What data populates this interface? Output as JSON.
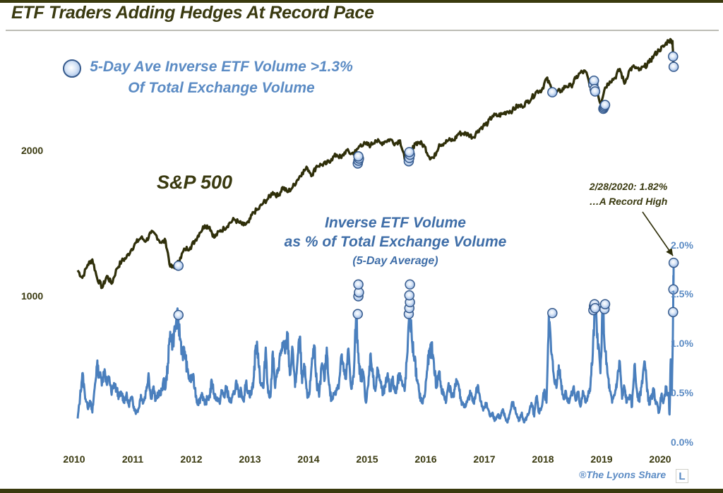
{
  "chart_data": {
    "type": "line",
    "title": "ETF Traders Adding Hedges At Record Pace",
    "x_range": [
      2010.0,
      2020.25
    ],
    "x_ticks": [
      "2010",
      "2011",
      "2012",
      "2013",
      "2014",
      "2015",
      "2016",
      "2017",
      "2018",
      "2019",
      "2020"
    ],
    "left_axis": {
      "scale": "log",
      "ticks": [
        "1000",
        "2000"
      ],
      "tick_values": [
        1000,
        2000
      ]
    },
    "right_axis": {
      "scale": "linear",
      "ticks": [
        "0.0%",
        "0.5%",
        "1.0%",
        "1.5%",
        "2.0%"
      ],
      "tick_values": [
        0.0,
        0.5,
        1.0,
        1.5,
        2.0
      ],
      "range": [
        0.0,
        2.0
      ]
    },
    "legend": {
      "marker": "circle-marker",
      "line1": "5-Day Ave Inverse ETF Volume >1.3%",
      "line2": "Of Total Exchange Volume",
      "placement": "top-left"
    },
    "series": [
      {
        "name": "S&P 500",
        "label": "S&P 500",
        "axis": "left",
        "color": "#2f2f0a",
        "x": [
          2010.0,
          2010.08,
          2010.17,
          2010.25,
          2010.33,
          2010.42,
          2010.5,
          2010.58,
          2010.67,
          2010.75,
          2010.83,
          2010.92,
          2011.0,
          2011.08,
          2011.17,
          2011.25,
          2011.33,
          2011.42,
          2011.5,
          2011.58,
          2011.67,
          2011.75,
          2011.83,
          2011.92,
          2012.0,
          2012.08,
          2012.17,
          2012.25,
          2012.33,
          2012.42,
          2012.5,
          2012.58,
          2012.67,
          2012.75,
          2012.83,
          2012.92,
          2013.0,
          2013.08,
          2013.17,
          2013.25,
          2013.33,
          2013.42,
          2013.5,
          2013.58,
          2013.67,
          2013.75,
          2013.83,
          2013.92,
          2014.0,
          2014.08,
          2014.17,
          2014.25,
          2014.33,
          2014.42,
          2014.5,
          2014.58,
          2014.67,
          2014.75,
          2014.83,
          2014.92,
          2015.0,
          2015.08,
          2015.17,
          2015.25,
          2015.33,
          2015.42,
          2015.5,
          2015.58,
          2015.67,
          2015.75,
          2015.83,
          2015.92,
          2016.0,
          2016.08,
          2016.17,
          2016.25,
          2016.33,
          2016.42,
          2016.5,
          2016.58,
          2016.67,
          2016.75,
          2016.83,
          2016.92,
          2017.0,
          2017.08,
          2017.17,
          2017.25,
          2017.33,
          2017.42,
          2017.5,
          2017.58,
          2017.67,
          2017.75,
          2017.83,
          2017.92,
          2018.0,
          2018.08,
          2018.17,
          2018.25,
          2018.33,
          2018.42,
          2018.5,
          2018.58,
          2018.67,
          2018.75,
          2018.83,
          2018.92,
          2019.0,
          2019.08,
          2019.17,
          2019.25,
          2019.33,
          2019.42,
          2019.5,
          2019.58,
          2019.67,
          2019.75,
          2019.83,
          2019.92,
          2020.0,
          2020.08,
          2020.15,
          2020.17
        ],
        "values": [
          1130,
          1090,
          1160,
          1190,
          1090,
          1040,
          1100,
          1060,
          1140,
          1180,
          1200,
          1250,
          1290,
          1320,
          1300,
          1350,
          1340,
          1290,
          1300,
          1150,
          1140,
          1200,
          1250,
          1260,
          1300,
          1350,
          1400,
          1390,
          1320,
          1360,
          1380,
          1410,
          1440,
          1420,
          1400,
          1420,
          1490,
          1510,
          1560,
          1590,
          1640,
          1610,
          1680,
          1640,
          1680,
          1740,
          1800,
          1840,
          1780,
          1860,
          1870,
          1880,
          1920,
          1960,
          1930,
          2000,
          1970,
          1990,
          2060,
          2060,
          2050,
          2100,
          2070,
          2090,
          2110,
          2070,
          2100,
          1920,
          1930,
          2070,
          2080,
          2040,
          1940,
          1930,
          2060,
          2070,
          2100,
          2100,
          2170,
          2170,
          2160,
          2130,
          2200,
          2250,
          2280,
          2360,
          2360,
          2380,
          2410,
          2420,
          2470,
          2470,
          2520,
          2570,
          2650,
          2670,
          2820,
          2700,
          2640,
          2660,
          2720,
          2720,
          2820,
          2900,
          2910,
          2710,
          2760,
          2500,
          2700,
          2780,
          2830,
          2950,
          2750,
          2940,
          2980,
          2930,
          2980,
          3040,
          3140,
          3230,
          3280,
          3380,
          3370,
          2950
        ]
      },
      {
        "name": "Inverse ETF Volume as % of Total Exchange Volume (5-Day Average)",
        "label_line1": "Inverse ETF Volume",
        "label_line2": "as % of Total Exchange Volume",
        "label_line3": "(5-Day Average)",
        "axis": "right",
        "color": "#4a7fbd",
        "x": [
          2010.0,
          2010.04,
          2010.08,
          2010.12,
          2010.17,
          2010.21,
          2010.25,
          2010.29,
          2010.33,
          2010.37,
          2010.42,
          2010.46,
          2010.5,
          2010.54,
          2010.58,
          2010.62,
          2010.67,
          2010.71,
          2010.75,
          2010.79,
          2010.83,
          2010.87,
          2010.92,
          2010.96,
          2011.0,
          2011.04,
          2011.08,
          2011.12,
          2011.17,
          2011.21,
          2011.25,
          2011.29,
          2011.33,
          2011.37,
          2011.42,
          2011.46,
          2011.5,
          2011.54,
          2011.58,
          2011.62,
          2011.67,
          2011.71,
          2011.75,
          2011.79,
          2011.83,
          2011.87,
          2011.92,
          2011.96,
          2012.0,
          2012.04,
          2012.08,
          2012.12,
          2012.17,
          2012.21,
          2012.25,
          2012.29,
          2012.33,
          2012.37,
          2012.42,
          2012.46,
          2012.5,
          2012.54,
          2012.58,
          2012.62,
          2012.67,
          2012.71,
          2012.75,
          2012.79,
          2012.83,
          2012.87,
          2012.92,
          2012.96,
          2013.0,
          2013.04,
          2013.08,
          2013.12,
          2013.17,
          2013.21,
          2013.25,
          2013.29,
          2013.33,
          2013.37,
          2013.42,
          2013.46,
          2013.5,
          2013.54,
          2013.58,
          2013.62,
          2013.67,
          2013.71,
          2013.75,
          2013.79,
          2013.83,
          2013.87,
          2013.92,
          2013.96,
          2014.0,
          2014.04,
          2014.08,
          2014.12,
          2014.17,
          2014.21,
          2014.25,
          2014.29,
          2014.33,
          2014.37,
          2014.42,
          2014.46,
          2014.5,
          2014.54,
          2014.58,
          2014.62,
          2014.67,
          2014.71,
          2014.75,
          2014.79,
          2014.83,
          2014.87,
          2014.92,
          2014.96,
          2015.0,
          2015.04,
          2015.08,
          2015.12,
          2015.17,
          2015.21,
          2015.25,
          2015.29,
          2015.33,
          2015.37,
          2015.42,
          2015.46,
          2015.5,
          2015.54,
          2015.58,
          2015.62,
          2015.67,
          2015.71,
          2015.75,
          2015.79,
          2015.83,
          2015.87,
          2015.92,
          2015.96,
          2016.0,
          2016.04,
          2016.08,
          2016.12,
          2016.17,
          2016.21,
          2016.25,
          2016.29,
          2016.33,
          2016.37,
          2016.42,
          2016.46,
          2016.5,
          2016.54,
          2016.58,
          2016.62,
          2016.67,
          2016.71,
          2016.75,
          2016.79,
          2016.83,
          2016.87,
          2016.92,
          2016.96,
          2017.0,
          2017.04,
          2017.08,
          2017.12,
          2017.17,
          2017.21,
          2017.25,
          2017.29,
          2017.33,
          2017.37,
          2017.42,
          2017.46,
          2017.5,
          2017.54,
          2017.58,
          2017.62,
          2017.67,
          2017.71,
          2017.75,
          2017.79,
          2017.83,
          2017.87,
          2017.92,
          2017.96,
          2018.0,
          2018.04,
          2018.08,
          2018.12,
          2018.17,
          2018.21,
          2018.25,
          2018.29,
          2018.33,
          2018.37,
          2018.42,
          2018.46,
          2018.5,
          2018.54,
          2018.58,
          2018.62,
          2018.67,
          2018.71,
          2018.75,
          2018.79,
          2018.83,
          2018.87,
          2018.92,
          2018.96,
          2019.0,
          2019.04,
          2019.08,
          2019.12,
          2019.17,
          2019.21,
          2019.25,
          2019.29,
          2019.33,
          2019.37,
          2019.42,
          2019.46,
          2019.5,
          2019.54,
          2019.58,
          2019.62,
          2019.67,
          2019.71,
          2019.75,
          2019.79,
          2019.83,
          2019.87,
          2019.92,
          2019.96,
          2020.0,
          2020.04,
          2020.08,
          2020.1,
          2020.12,
          2020.14,
          2020.16,
          2020.17
        ],
        "values": [
          0.24,
          0.45,
          0.7,
          0.5,
          0.35,
          0.42,
          0.3,
          0.55,
          0.78,
          0.68,
          0.62,
          0.74,
          0.58,
          0.66,
          0.48,
          0.6,
          0.52,
          0.46,
          0.5,
          0.42,
          0.48,
          0.38,
          0.45,
          0.36,
          0.3,
          0.34,
          0.48,
          0.4,
          0.52,
          0.7,
          0.44,
          0.56,
          0.42,
          0.5,
          0.48,
          0.62,
          0.55,
          0.8,
          1.12,
          1.0,
          1.18,
          1.26,
          1.05,
          0.9,
          0.92,
          0.72,
          0.62,
          0.68,
          0.55,
          0.4,
          0.42,
          0.5,
          0.38,
          0.44,
          0.46,
          0.62,
          0.48,
          0.45,
          0.4,
          0.52,
          0.46,
          0.56,
          0.44,
          0.4,
          0.5,
          0.62,
          0.46,
          0.52,
          0.42,
          0.6,
          0.5,
          0.48,
          0.62,
          0.98,
          0.9,
          0.6,
          0.55,
          0.96,
          0.5,
          0.46,
          0.92,
          0.55,
          0.75,
          0.88,
          1.0,
          0.9,
          1.1,
          0.68,
          0.94,
          0.56,
          0.82,
          1.07,
          0.6,
          0.76,
          0.45,
          0.52,
          0.85,
          0.98,
          0.6,
          0.46,
          0.8,
          0.62,
          0.96,
          0.58,
          0.42,
          0.48,
          0.55,
          0.6,
          0.88,
          0.72,
          0.64,
          0.95,
          0.54,
          0.66,
          1.28,
          0.9,
          0.62,
          0.72,
          0.4,
          0.58,
          0.9,
          0.66,
          0.52,
          0.74,
          0.6,
          0.48,
          0.56,
          0.7,
          0.52,
          0.64,
          0.5,
          0.62,
          0.7,
          0.58,
          0.52,
          0.86,
          1.3,
          1.0,
          0.85,
          0.62,
          0.5,
          0.4,
          0.46,
          0.72,
          0.9,
          0.96,
          0.8,
          0.55,
          0.72,
          0.52,
          0.48,
          0.42,
          0.6,
          0.5,
          0.46,
          0.64,
          0.58,
          0.42,
          0.38,
          0.36,
          0.44,
          0.5,
          0.4,
          0.48,
          0.58,
          0.42,
          0.32,
          0.4,
          0.34,
          0.26,
          0.3,
          0.22,
          0.28,
          0.24,
          0.32,
          0.26,
          0.2,
          0.28,
          0.4,
          0.34,
          0.26,
          0.22,
          0.3,
          0.2,
          0.26,
          0.32,
          0.38,
          0.26,
          0.46,
          0.3,
          0.36,
          0.52,
          0.4,
          1.3,
          0.92,
          0.7,
          0.55,
          0.78,
          0.6,
          0.44,
          0.52,
          0.4,
          0.48,
          0.56,
          0.42,
          0.5,
          0.36,
          0.52,
          0.4,
          0.46,
          0.58,
          0.9,
          1.38,
          1.1,
          0.7,
          1.38,
          0.92,
          0.7,
          0.52,
          0.4,
          0.5,
          0.64,
          0.82,
          0.44,
          0.56,
          0.4,
          0.48,
          0.36,
          0.78,
          0.54,
          0.42,
          0.56,
          0.82,
          0.6,
          0.38,
          0.46,
          0.52,
          0.4,
          0.3,
          0.48,
          0.42,
          0.56,
          0.5,
          0.28,
          0.84,
          0.48,
          1.32,
          1.82
        ]
      }
    ],
    "signal_markers_sp": [
      [
        2011.72,
        1155
      ],
      [
        2014.78,
        1880
      ],
      [
        2014.79,
        1905
      ],
      [
        2014.8,
        1925
      ],
      [
        2014.79,
        1945
      ],
      [
        2015.65,
        1900
      ],
      [
        2015.66,
        1930
      ],
      [
        2015.67,
        1960
      ],
      [
        2015.66,
        1985
      ],
      [
        2018.1,
        2640
      ],
      [
        2018.8,
        2740
      ],
      [
        2018.81,
        2790
      ],
      [
        2018.82,
        2680
      ],
      [
        2018.83,
        2650
      ],
      [
        2018.97,
        2440
      ],
      [
        2018.98,
        2455
      ],
      [
        2018.99,
        2470
      ],
      [
        2019.0,
        2485
      ],
      [
        2020.16,
        3130
      ],
      [
        2020.17,
        2980
      ]
    ],
    "signal_markers_pct": [
      [
        2011.72,
        1.29
      ],
      [
        2014.78,
        1.3
      ],
      [
        2014.79,
        1.48
      ],
      [
        2014.8,
        1.52
      ],
      [
        2014.79,
        1.6
      ],
      [
        2015.65,
        1.3
      ],
      [
        2015.66,
        1.36
      ],
      [
        2015.67,
        1.42
      ],
      [
        2015.66,
        1.49
      ],
      [
        2015.67,
        1.6
      ],
      [
        2018.1,
        1.31
      ],
      [
        2018.8,
        1.34
      ],
      [
        2018.81,
        1.38
      ],
      [
        2018.82,
        1.4
      ],
      [
        2018.83,
        1.36
      ],
      [
        2018.99,
        1.35
      ],
      [
        2019.0,
        1.4
      ],
      [
        2020.16,
        1.32
      ],
      [
        2020.165,
        1.55
      ],
      [
        2020.17,
        1.82
      ]
    ],
    "annotation": {
      "line1": "2/28/2020: 1.82%",
      "line2": "…A Record High",
      "target_x": 2020.17,
      "target_y": 1.82
    }
  },
  "credit": "®The Lyons Share",
  "logo_letter": "L"
}
